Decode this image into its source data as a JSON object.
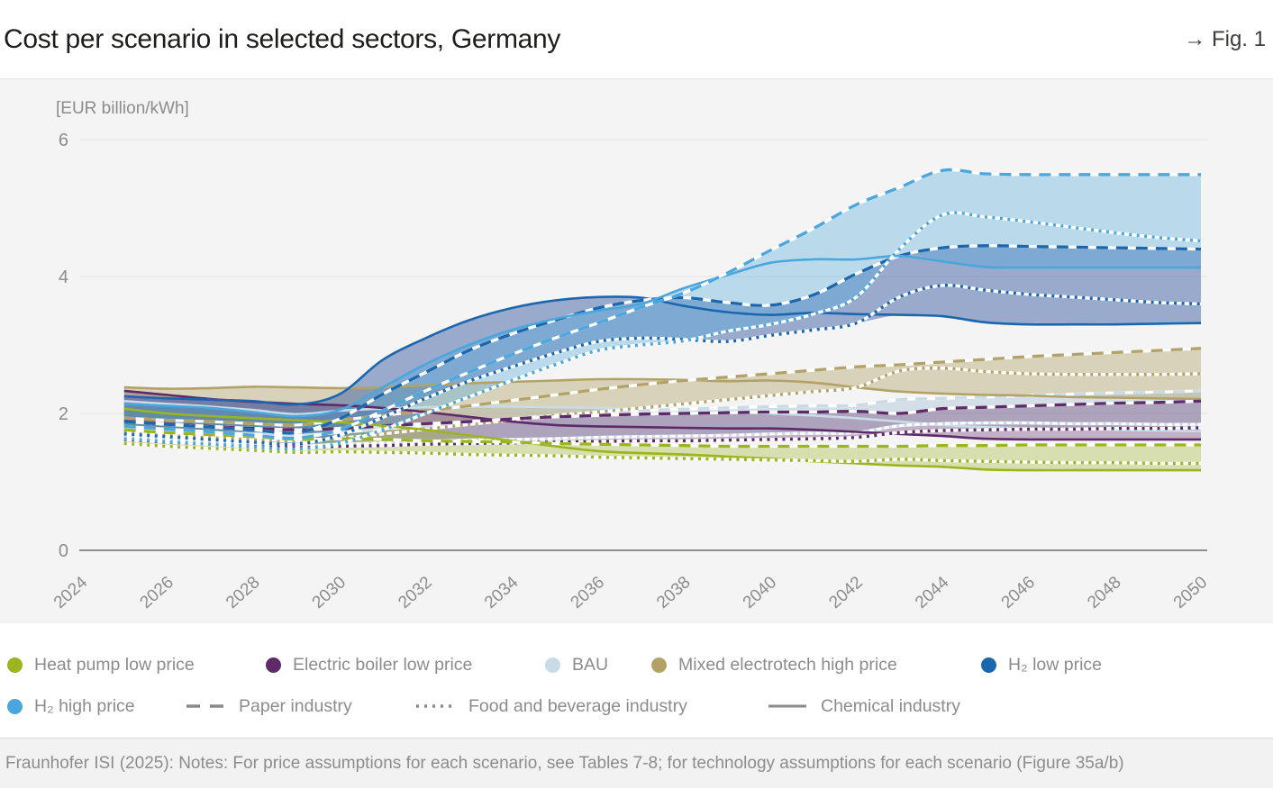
{
  "header": {
    "title": "Cost per scenario in selected sectors, Germany",
    "fig_ref": "→ Fig. 1"
  },
  "footer": {
    "text": "Fraunhofer ISI (2025): Notes: For price assumptions for each scenario, see Tables 7-8; for technology assumptions for each scenario (Figure 35a/b)"
  },
  "chart_data": {
    "type": "line",
    "title": "Cost per scenario in selected sectors, Germany",
    "ylabel": "[EUR billion/kWh]",
    "ylim": [
      0,
      6
    ],
    "y_ticks": [
      0,
      2,
      4,
      6
    ],
    "x_ticks": [
      2024,
      2026,
      2028,
      2030,
      2032,
      2034,
      2036,
      2038,
      2040,
      2042,
      2044,
      2046,
      2048,
      2050
    ],
    "grid": "horizontal-light",
    "legend_position": "bottom",
    "years": [
      2025,
      2026,
      2027,
      2028,
      2029,
      2030,
      2031,
      2032,
      2033,
      2034,
      2035,
      2036,
      2037,
      2038,
      2039,
      2040,
      2041,
      2042,
      2043,
      2044,
      2045,
      2046,
      2047,
      2048,
      2049,
      2050
    ],
    "sectors": [
      {
        "id": "chemical",
        "label": "Chemical industry",
        "style": "solid"
      },
      {
        "id": "paper",
        "label": "Paper industry",
        "style": "dashed"
      },
      {
        "id": "food_beverage",
        "label": "Food and beverage industry",
        "style": "dotted"
      }
    ],
    "scenarios": [
      {
        "id": "heat_pump",
        "label": "Heat pump low price",
        "color": "#9ab51e",
        "band_color": "#9ab51e",
        "series": {
          "chemical": [
            2.07,
            2.0,
            1.96,
            1.93,
            1.9,
            1.87,
            1.82,
            1.76,
            1.68,
            1.6,
            1.52,
            1.45,
            1.42,
            1.4,
            1.37,
            1.34,
            1.3,
            1.27,
            1.24,
            1.22,
            1.18,
            1.17,
            1.17,
            1.17,
            1.17,
            1.17
          ],
          "paper": [
            1.76,
            1.72,
            1.69,
            1.66,
            1.62,
            1.63,
            1.62,
            1.6,
            1.59,
            1.58,
            1.56,
            1.55,
            1.54,
            1.53,
            1.52,
            1.52,
            1.52,
            1.52,
            1.52,
            1.53,
            1.53,
            1.54,
            1.54,
            1.54,
            1.54,
            1.54
          ],
          "food_beverage": [
            1.56,
            1.52,
            1.49,
            1.46,
            1.43,
            1.44,
            1.43,
            1.42,
            1.4,
            1.39,
            1.38,
            1.36,
            1.35,
            1.34,
            1.33,
            1.32,
            1.31,
            1.3,
            1.33,
            1.31,
            1.3,
            1.29,
            1.28,
            1.28,
            1.27,
            1.27
          ]
        }
      },
      {
        "id": "electric_boiler",
        "label": "Electric boiler low price",
        "color": "#5e2a68",
        "band_color": "#5e2a68",
        "series": {
          "chemical": [
            2.33,
            2.27,
            2.21,
            2.17,
            2.14,
            2.12,
            2.08,
            2.02,
            1.95,
            1.88,
            1.83,
            1.81,
            1.8,
            1.79,
            1.78,
            1.78,
            1.76,
            1.73,
            1.7,
            1.67,
            1.63,
            1.62,
            1.62,
            1.62,
            1.62,
            1.62
          ],
          "paper": [
            1.89,
            1.85,
            1.81,
            1.78,
            1.76,
            1.78,
            1.82,
            1.85,
            1.88,
            1.92,
            1.95,
            1.97,
            1.99,
            2.0,
            2.01,
            2.02,
            2.02,
            2.03,
            2.0,
            2.07,
            2.09,
            2.11,
            2.13,
            2.15,
            2.16,
            2.18
          ],
          "food_beverage": [
            1.62,
            1.58,
            1.55,
            1.52,
            1.5,
            1.52,
            1.53,
            1.55,
            1.56,
            1.57,
            1.58,
            1.59,
            1.6,
            1.6,
            1.61,
            1.62,
            1.63,
            1.65,
            1.72,
            1.75,
            1.76,
            1.77,
            1.77,
            1.78,
            1.78,
            1.79
          ]
        }
      },
      {
        "id": "bau",
        "label": "BAU",
        "color": "#c9dbe6",
        "band_color": "#b9ccd9",
        "series": {
          "chemical": [
            2.18,
            2.14,
            2.1,
            2.05,
            1.99,
            2.04,
            2.07,
            2.09,
            2.1,
            2.1,
            2.09,
            2.08,
            2.06,
            2.04,
            2.02,
            2.0,
            1.97,
            1.93,
            1.88,
            1.83,
            1.8,
            1.78,
            1.77,
            1.76,
            1.75,
            1.74
          ],
          "paper": [
            1.79,
            1.75,
            1.72,
            1.7,
            1.68,
            1.72,
            1.77,
            1.82,
            1.87,
            1.92,
            1.97,
            2.01,
            2.04,
            2.06,
            2.08,
            2.1,
            2.11,
            2.12,
            2.2,
            2.22,
            2.24,
            2.26,
            2.28,
            2.3,
            2.31,
            2.33
          ],
          "food_beverage": [
            1.66,
            1.62,
            1.58,
            1.55,
            1.52,
            1.55,
            1.57,
            1.59,
            1.61,
            1.62,
            1.63,
            1.65,
            1.66,
            1.67,
            1.68,
            1.7,
            1.71,
            1.72,
            1.82,
            1.85,
            1.86,
            1.86,
            1.85,
            1.85,
            1.84,
            1.84
          ]
        }
      },
      {
        "id": "mixed_electrotech",
        "label": "Mixed electrotech high price",
        "color": "#b2a268",
        "band_color": "#b2a268",
        "series": {
          "chemical": [
            2.38,
            2.36,
            2.37,
            2.39,
            2.38,
            2.37,
            2.38,
            2.41,
            2.44,
            2.46,
            2.48,
            2.5,
            2.5,
            2.49,
            2.47,
            2.48,
            2.45,
            2.38,
            2.32,
            2.29,
            2.27,
            2.26,
            2.24,
            2.23,
            2.22,
            2.21
          ],
          "paper": [
            1.93,
            1.9,
            1.88,
            1.85,
            1.83,
            1.9,
            1.97,
            2.04,
            2.11,
            2.19,
            2.27,
            2.35,
            2.42,
            2.48,
            2.53,
            2.58,
            2.63,
            2.68,
            2.71,
            2.75,
            2.79,
            2.83,
            2.86,
            2.89,
            2.92,
            2.95
          ],
          "food_beverage": [
            1.72,
            1.68,
            1.65,
            1.62,
            1.6,
            1.64,
            1.7,
            1.77,
            1.84,
            1.9,
            1.97,
            2.02,
            2.08,
            2.14,
            2.2,
            2.26,
            2.32,
            2.38,
            2.62,
            2.66,
            2.61,
            2.58,
            2.57,
            2.57,
            2.57,
            2.58
          ]
        }
      },
      {
        "id": "h2_low",
        "label": "H₂ low price",
        "color": "#1a67b0",
        "band_color": "#3d5fa5",
        "series": {
          "chemical": [
            2.25,
            2.22,
            2.2,
            2.18,
            2.13,
            2.28,
            2.78,
            3.1,
            3.36,
            3.54,
            3.65,
            3.7,
            3.69,
            3.57,
            3.48,
            3.44,
            3.47,
            3.45,
            3.44,
            3.42,
            3.33,
            3.3,
            3.3,
            3.3,
            3.31,
            3.32
          ],
          "paper": [
            1.88,
            1.84,
            1.8,
            1.76,
            1.72,
            1.92,
            2.28,
            2.6,
            2.92,
            3.16,
            3.36,
            3.54,
            3.65,
            3.69,
            3.62,
            3.58,
            3.73,
            4.04,
            4.3,
            4.42,
            4.45,
            4.44,
            4.43,
            4.42,
            4.41,
            4.4
          ],
          "food_beverage": [
            1.7,
            1.66,
            1.62,
            1.58,
            1.55,
            1.68,
            1.94,
            2.22,
            2.47,
            2.68,
            2.88,
            3.05,
            3.1,
            3.08,
            3.05,
            3.14,
            3.22,
            3.32,
            3.7,
            3.87,
            3.8,
            3.74,
            3.7,
            3.66,
            3.62,
            3.6
          ]
        }
      },
      {
        "id": "h2_high",
        "label": "H₂ high price",
        "color": "#4aa7dd",
        "band_color": "#4aa7dd",
        "series": {
          "chemical": [
            2.14,
            2.11,
            2.08,
            2.02,
            1.96,
            2.05,
            2.38,
            2.72,
            3.0,
            3.22,
            3.38,
            3.5,
            3.6,
            3.83,
            4.02,
            4.2,
            4.25,
            4.25,
            4.3,
            4.22,
            4.14,
            4.13,
            4.13,
            4.13,
            4.13,
            4.13
          ],
          "paper": [
            1.81,
            1.77,
            1.73,
            1.68,
            1.64,
            1.76,
            2.04,
            2.33,
            2.6,
            2.86,
            3.1,
            3.32,
            3.55,
            3.76,
            4.05,
            4.38,
            4.7,
            5.05,
            5.3,
            5.55,
            5.5,
            5.49,
            5.49,
            5.49,
            5.49,
            5.49
          ],
          "food_beverage": [
            1.63,
            1.59,
            1.55,
            1.51,
            1.48,
            1.56,
            1.76,
            2.0,
            2.24,
            2.48,
            2.71,
            2.92,
            3.0,
            3.06,
            3.2,
            3.3,
            3.45,
            3.7,
            4.4,
            4.9,
            4.87,
            4.8,
            4.72,
            4.64,
            4.57,
            4.52
          ]
        }
      }
    ]
  }
}
